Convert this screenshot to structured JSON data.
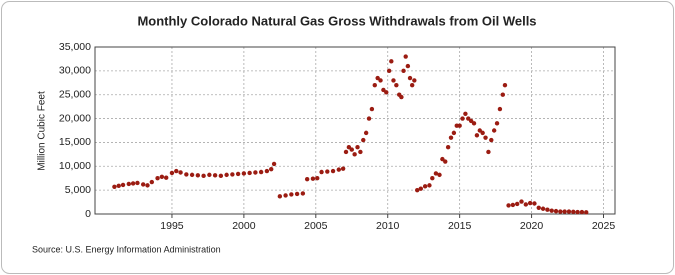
{
  "chart_data": {
    "type": "scatter",
    "title": "Monthly Colorado Natural Gas Gross Withdrawals from Oil Wells",
    "y_label": "Million Cubic Feet",
    "source": "Source: U.S. Energy Information Administration",
    "color": "#9b1c12",
    "grid": true,
    "x": [
      1991.0,
      1991.3,
      1991.6,
      1992.0,
      1992.3,
      1992.6,
      1993.0,
      1993.3,
      1993.6,
      1994.0,
      1994.3,
      1994.6,
      1995.0,
      1995.3,
      1995.6,
      1996.0,
      1996.4,
      1996.8,
      1997.2,
      1997.6,
      1998.0,
      1998.4,
      1998.8,
      1999.2,
      1999.6,
      2000.0,
      2000.4,
      2000.8,
      2001.2,
      2001.6,
      2001.9,
      2002.1,
      2002.5,
      2002.9,
      2003.3,
      2003.7,
      2004.1,
      2004.4,
      2004.8,
      2005.1,
      2005.4,
      2005.8,
      2006.2,
      2006.6,
      2006.9,
      2007.1,
      2007.3,
      2007.5,
      2007.7,
      2007.9,
      2008.1,
      2008.3,
      2008.5,
      2008.7,
      2008.9,
      2009.1,
      2009.3,
      2009.5,
      2009.7,
      2009.9,
      2010.1,
      2010.25,
      2010.4,
      2010.6,
      2010.8,
      2010.95,
      2011.1,
      2011.25,
      2011.4,
      2011.55,
      2011.7,
      2011.85,
      2012.05,
      2012.3,
      2012.6,
      2012.9,
      2013.1,
      2013.35,
      2013.6,
      2013.8,
      2014.0,
      2014.2,
      2014.4,
      2014.6,
      2014.8,
      2015.0,
      2015.2,
      2015.4,
      2015.6,
      2015.8,
      2016.0,
      2016.2,
      2016.4,
      2016.6,
      2016.8,
      2017.0,
      2017.2,
      2017.4,
      2017.6,
      2017.8,
      2018.0,
      2018.15,
      2018.4,
      2018.7,
      2019.0,
      2019.3,
      2019.6,
      2019.9,
      2020.2,
      2020.5,
      2020.8,
      2021.1,
      2021.4,
      2021.7,
      2022.0,
      2022.3,
      2022.6,
      2022.9,
      2023.2,
      2023.5,
      2023.8
    ],
    "values": [
      5700,
      5900,
      6100,
      6300,
      6400,
      6500,
      6200,
      6000,
      6700,
      7500,
      7800,
      7600,
      8600,
      9000,
      8700,
      8300,
      8200,
      8100,
      8000,
      8200,
      8100,
      8000,
      8200,
      8300,
      8400,
      8500,
      8600,
      8700,
      8800,
      9000,
      9400,
      10500,
      3700,
      3900,
      4100,
      4200,
      4300,
      7300,
      7400,
      7500,
      8800,
      8900,
      9000,
      9300,
      9500,
      13000,
      14000,
      13500,
      12500,
      14000,
      13000,
      15500,
      17000,
      20000,
      22000,
      27000,
      28500,
      28000,
      26000,
      25500,
      30000,
      32000,
      28000,
      27000,
      25000,
      24500,
      30000,
      33000,
      31000,
      28500,
      27000,
      28000,
      5000,
      5300,
      5800,
      6000,
      7500,
      8500,
      8200,
      11500,
      11000,
      14000,
      16000,
      17000,
      18500,
      18500,
      20000,
      21000,
      20000,
      19500,
      19000,
      16500,
      17500,
      17000,
      16000,
      13000,
      15500,
      17500,
      19000,
      22000,
      25000,
      27000,
      1800,
      1900,
      2100,
      2600,
      2000,
      2300,
      2200,
      1300,
      1100,
      900,
      700,
      600,
      500,
      500,
      500,
      450,
      400,
      400,
      350
    ],
    "xlim": [
      1989.65,
      2025.8
    ],
    "xticks": [
      1995,
      2000,
      2005,
      2010,
      2015,
      2020,
      2025
    ],
    "ylim": [
      0,
      35000
    ],
    "yticks": [
      0,
      {
        "value": 5000,
        "label": "5,000"
      },
      {
        "value": 10000,
        "label": "10,000"
      },
      {
        "value": 15000,
        "label": "15,000"
      },
      {
        "value": 20000,
        "label": "20,000"
      },
      {
        "value": 25000,
        "label": "25,000"
      },
      {
        "value": 30000,
        "label": "30,000"
      },
      {
        "value": 35000,
        "label": "35,000"
      }
    ]
  }
}
